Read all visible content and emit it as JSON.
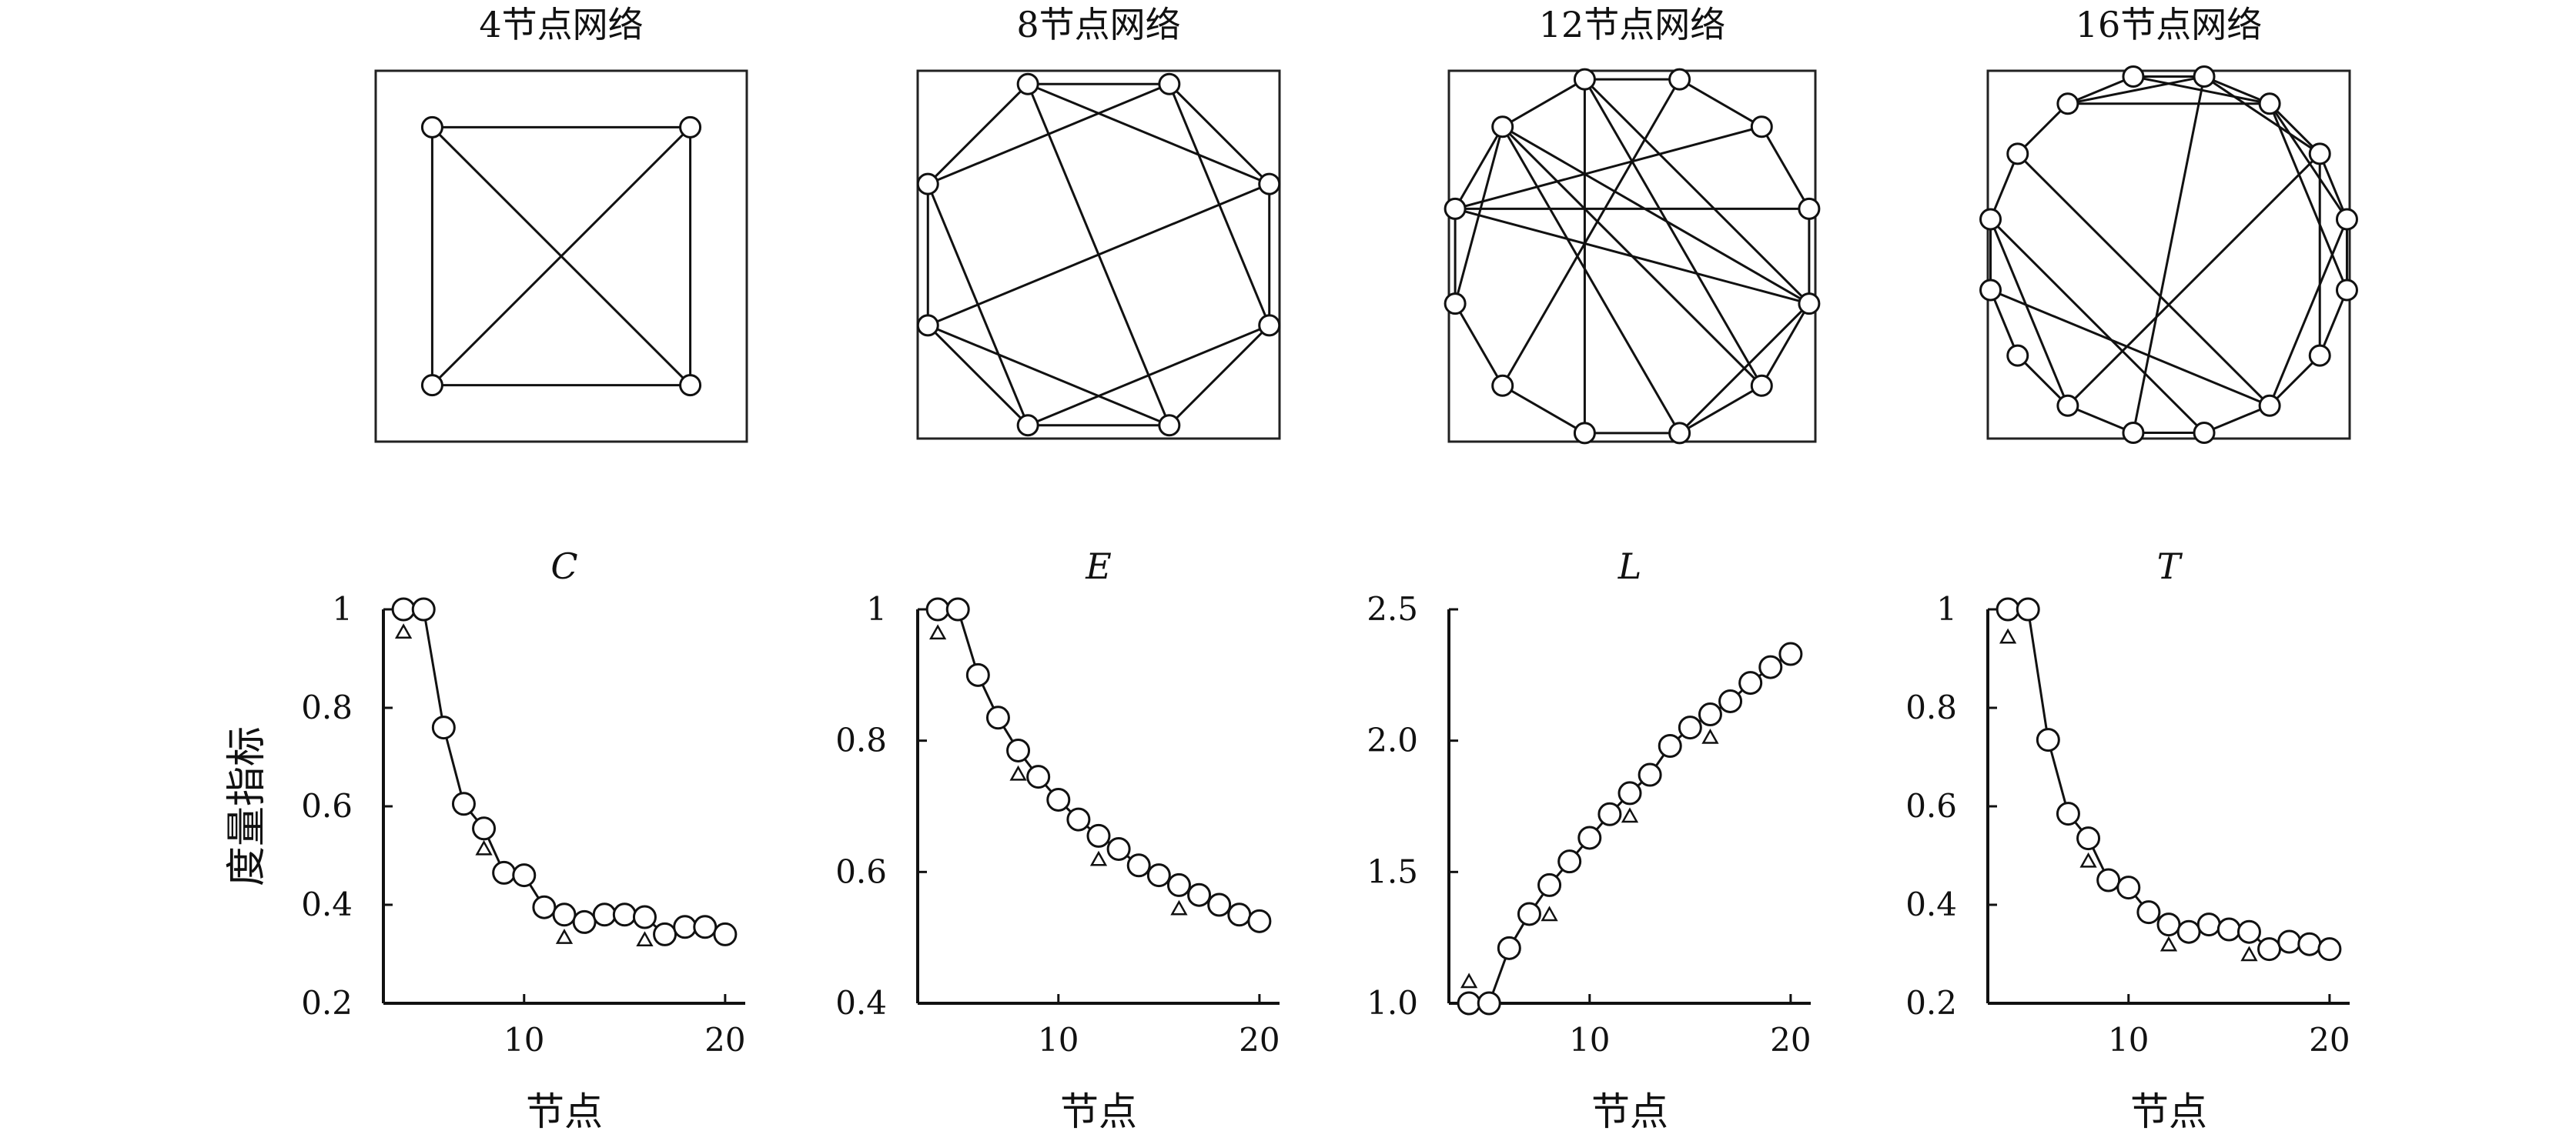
{
  "networks": [
    {
      "title": "4节点网络",
      "n": 4,
      "edges": [
        [
          0,
          1
        ],
        [
          1,
          2
        ],
        [
          2,
          3
        ],
        [
          3,
          0
        ],
        [
          0,
          2
        ],
        [
          1,
          3
        ]
      ]
    },
    {
      "title": "8节点网络",
      "n": 8,
      "edges": [
        [
          0,
          1
        ],
        [
          1,
          2
        ],
        [
          2,
          3
        ],
        [
          3,
          4
        ],
        [
          4,
          5
        ],
        [
          5,
          6
        ],
        [
          6,
          7
        ],
        [
          7,
          0
        ],
        [
          0,
          2
        ],
        [
          2,
          4
        ],
        [
          4,
          6
        ],
        [
          6,
          0
        ],
        [
          7,
          1
        ],
        [
          1,
          5
        ],
        [
          5,
          3
        ],
        [
          3,
          7
        ]
      ]
    },
    {
      "title": "12节点网络",
      "n": 12,
      "edges": [
        [
          0,
          1
        ],
        [
          1,
          2
        ],
        [
          2,
          3
        ],
        [
          3,
          4
        ],
        [
          4,
          5
        ],
        [
          5,
          6
        ],
        [
          6,
          7
        ],
        [
          7,
          8
        ],
        [
          8,
          9
        ],
        [
          9,
          10
        ],
        [
          10,
          11
        ],
        [
          11,
          0
        ],
        [
          11,
          3
        ],
        [
          11,
          4
        ],
        [
          11,
          6
        ],
        [
          10,
          3
        ],
        [
          10,
          5
        ],
        [
          1,
          9
        ],
        [
          0,
          7
        ],
        [
          2,
          9
        ],
        [
          9,
          3
        ],
        [
          8,
          10
        ],
        [
          3,
          5
        ],
        [
          4,
          10
        ]
      ]
    },
    {
      "title": "16节点网络",
      "n": 16,
      "edges": [
        [
          0,
          1
        ],
        [
          1,
          2
        ],
        [
          2,
          3
        ],
        [
          3,
          4
        ],
        [
          4,
          5
        ],
        [
          5,
          6
        ],
        [
          6,
          7
        ],
        [
          7,
          8
        ],
        [
          8,
          9
        ],
        [
          9,
          10
        ],
        [
          10,
          11
        ],
        [
          11,
          12
        ],
        [
          12,
          13
        ],
        [
          13,
          14
        ],
        [
          14,
          15
        ],
        [
          15,
          0
        ],
        [
          0,
          8
        ],
        [
          0,
          2
        ],
        [
          1,
          3
        ],
        [
          14,
          0
        ],
        [
          14,
          1
        ],
        [
          3,
          6
        ],
        [
          12,
          7
        ],
        [
          12,
          9
        ],
        [
          11,
          6
        ],
        [
          2,
          9
        ],
        [
          4,
          1
        ],
        [
          13,
          6
        ],
        [
          15,
          1
        ],
        [
          5,
          2
        ]
      ]
    }
  ],
  "chart_data": [
    {
      "type": "line",
      "title": "C",
      "xlabel": "节点",
      "ylabel": "度量指标",
      "xlim": [
        3,
        21
      ],
      "ylim": [
        0.2,
        1
      ],
      "xticks": [
        10,
        20
      ],
      "yticks": [
        0.2,
        0.4,
        0.6,
        0.8,
        1
      ],
      "ytick_labels": [
        "0.2",
        "0.4",
        "0.6",
        "0.8",
        "1"
      ],
      "series": [
        {
          "marker": "circle",
          "x": [
            4,
            5,
            6,
            7,
            8,
            9,
            10,
            11,
            12,
            13,
            14,
            15,
            16,
            17,
            18,
            19,
            20
          ],
          "y": [
            1.0,
            1.0,
            0.76,
            0.605,
            0.555,
            0.465,
            0.46,
            0.395,
            0.38,
            0.365,
            0.38,
            0.38,
            0.375,
            0.34,
            0.355,
            0.355,
            0.34
          ]
        },
        {
          "marker": "triangle",
          "x": [
            4,
            8,
            12,
            16
          ],
          "y": [
            0.955,
            0.515,
            0.335,
            0.33
          ]
        }
      ]
    },
    {
      "type": "line",
      "title": "E",
      "xlabel": "节点",
      "ylabel": "",
      "xlim": [
        3,
        21
      ],
      "ylim": [
        0.4,
        1
      ],
      "xticks": [
        10,
        20
      ],
      "yticks": [
        0.4,
        0.6,
        0.8,
        1
      ],
      "ytick_labels": [
        "0.4",
        "0.6",
        "0.8",
        "1"
      ],
      "series": [
        {
          "marker": "circle",
          "x": [
            4,
            5,
            6,
            7,
            8,
            9,
            10,
            11,
            12,
            13,
            14,
            15,
            16,
            17,
            18,
            19,
            20
          ],
          "y": [
            1.0,
            1.0,
            0.9,
            0.835,
            0.785,
            0.745,
            0.71,
            0.68,
            0.655,
            0.635,
            0.61,
            0.595,
            0.58,
            0.565,
            0.55,
            0.535,
            0.525
          ]
        },
        {
          "marker": "triangle",
          "x": [
            4,
            8,
            12,
            16
          ],
          "y": [
            0.965,
            0.75,
            0.62,
            0.545
          ]
        }
      ]
    },
    {
      "type": "line",
      "title": "L",
      "xlabel": "节点",
      "ylabel": "",
      "xlim": [
        3,
        21
      ],
      "ylim": [
        1.0,
        2.5
      ],
      "xticks": [
        10,
        20
      ],
      "yticks": [
        1.0,
        1.5,
        2.0,
        2.5
      ],
      "ytick_labels": [
        "1.0",
        "1.5",
        "2.0",
        "2.5"
      ],
      "series": [
        {
          "marker": "circle",
          "x": [
            4,
            5,
            6,
            7,
            8,
            9,
            10,
            11,
            12,
            13,
            14,
            15,
            16,
            17,
            18,
            19,
            20
          ],
          "y": [
            1.0,
            1.0,
            1.21,
            1.34,
            1.45,
            1.54,
            1.63,
            1.72,
            1.8,
            1.87,
            1.98,
            2.05,
            2.1,
            2.15,
            2.22,
            2.28,
            2.33
          ]
        },
        {
          "marker": "triangle",
          "x": [
            4,
            8,
            12,
            16
          ],
          "y": [
            1.085,
            1.34,
            1.715,
            2.015
          ]
        }
      ]
    },
    {
      "type": "line",
      "title": "T",
      "xlabel": "节点",
      "ylabel": "",
      "xlim": [
        3,
        21
      ],
      "ylim": [
        0.2,
        1
      ],
      "xticks": [
        10,
        20
      ],
      "yticks": [
        0.2,
        0.4,
        0.6,
        0.8,
        1
      ],
      "ytick_labels": [
        "0.2",
        "0.4",
        "0.6",
        "0.8",
        "1"
      ],
      "series": [
        {
          "marker": "circle",
          "x": [
            4,
            5,
            6,
            7,
            8,
            9,
            10,
            11,
            12,
            13,
            14,
            15,
            16,
            17,
            18,
            19,
            20
          ],
          "y": [
            1.0,
            1.0,
            0.735,
            0.585,
            0.535,
            0.45,
            0.435,
            0.385,
            0.36,
            0.345,
            0.36,
            0.35,
            0.345,
            0.31,
            0.325,
            0.32,
            0.31
          ]
        },
        {
          "marker": "triangle",
          "x": [
            4,
            8,
            12,
            16
          ],
          "y": [
            0.945,
            0.49,
            0.32,
            0.3
          ]
        }
      ]
    }
  ]
}
